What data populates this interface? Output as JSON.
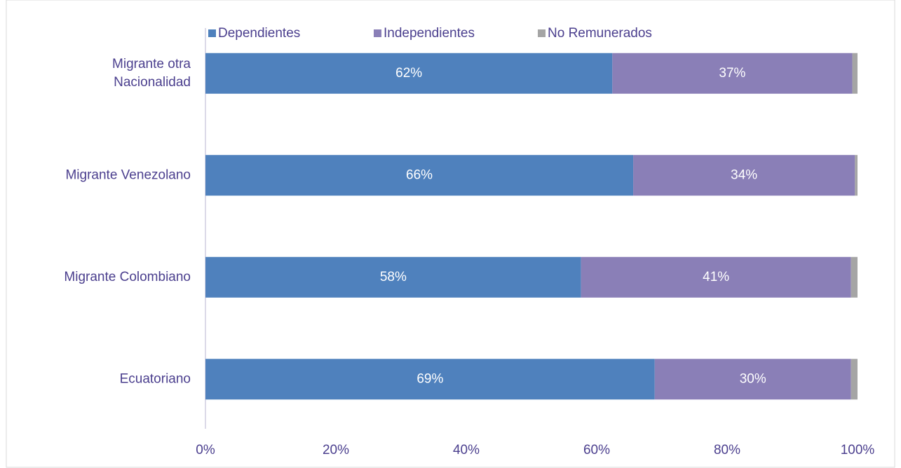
{
  "chart_data": {
    "type": "stacked_barh",
    "categories": [
      "Migrante otra Nacionalidad",
      "Migrante Venezolano",
      "Migrante Colombiano",
      "Ecuatoriano"
    ],
    "series": [
      {
        "name": "Dependientes",
        "color": "#4f81bd",
        "values": [
          62.4,
          65.6,
          57.6,
          68.9
        ],
        "value_labels": [
          "62%",
          "66%",
          "58%",
          "69%"
        ]
      },
      {
        "name": "Independientes",
        "color": "#8a7fb7",
        "values": [
          36.8,
          34.0,
          41.4,
          30.1
        ],
        "value_labels": [
          "37%",
          "34%",
          "41%",
          "30%"
        ]
      },
      {
        "name": "No Remunerados",
        "color": "#a5a5a5",
        "values": [
          0.8,
          0.4,
          1.0,
          1.0
        ]
      }
    ],
    "xlim": [
      0,
      100
    ],
    "xticks": [
      {
        "value": 0,
        "label": "0%"
      },
      {
        "value": 20,
        "label": "20%"
      },
      {
        "value": 40,
        "label": "40%"
      },
      {
        "value": 60,
        "label": "60%"
      },
      {
        "value": 80,
        "label": "80%"
      },
      {
        "value": 100,
        "label": "100%"
      }
    ],
    "legend": "top"
  }
}
